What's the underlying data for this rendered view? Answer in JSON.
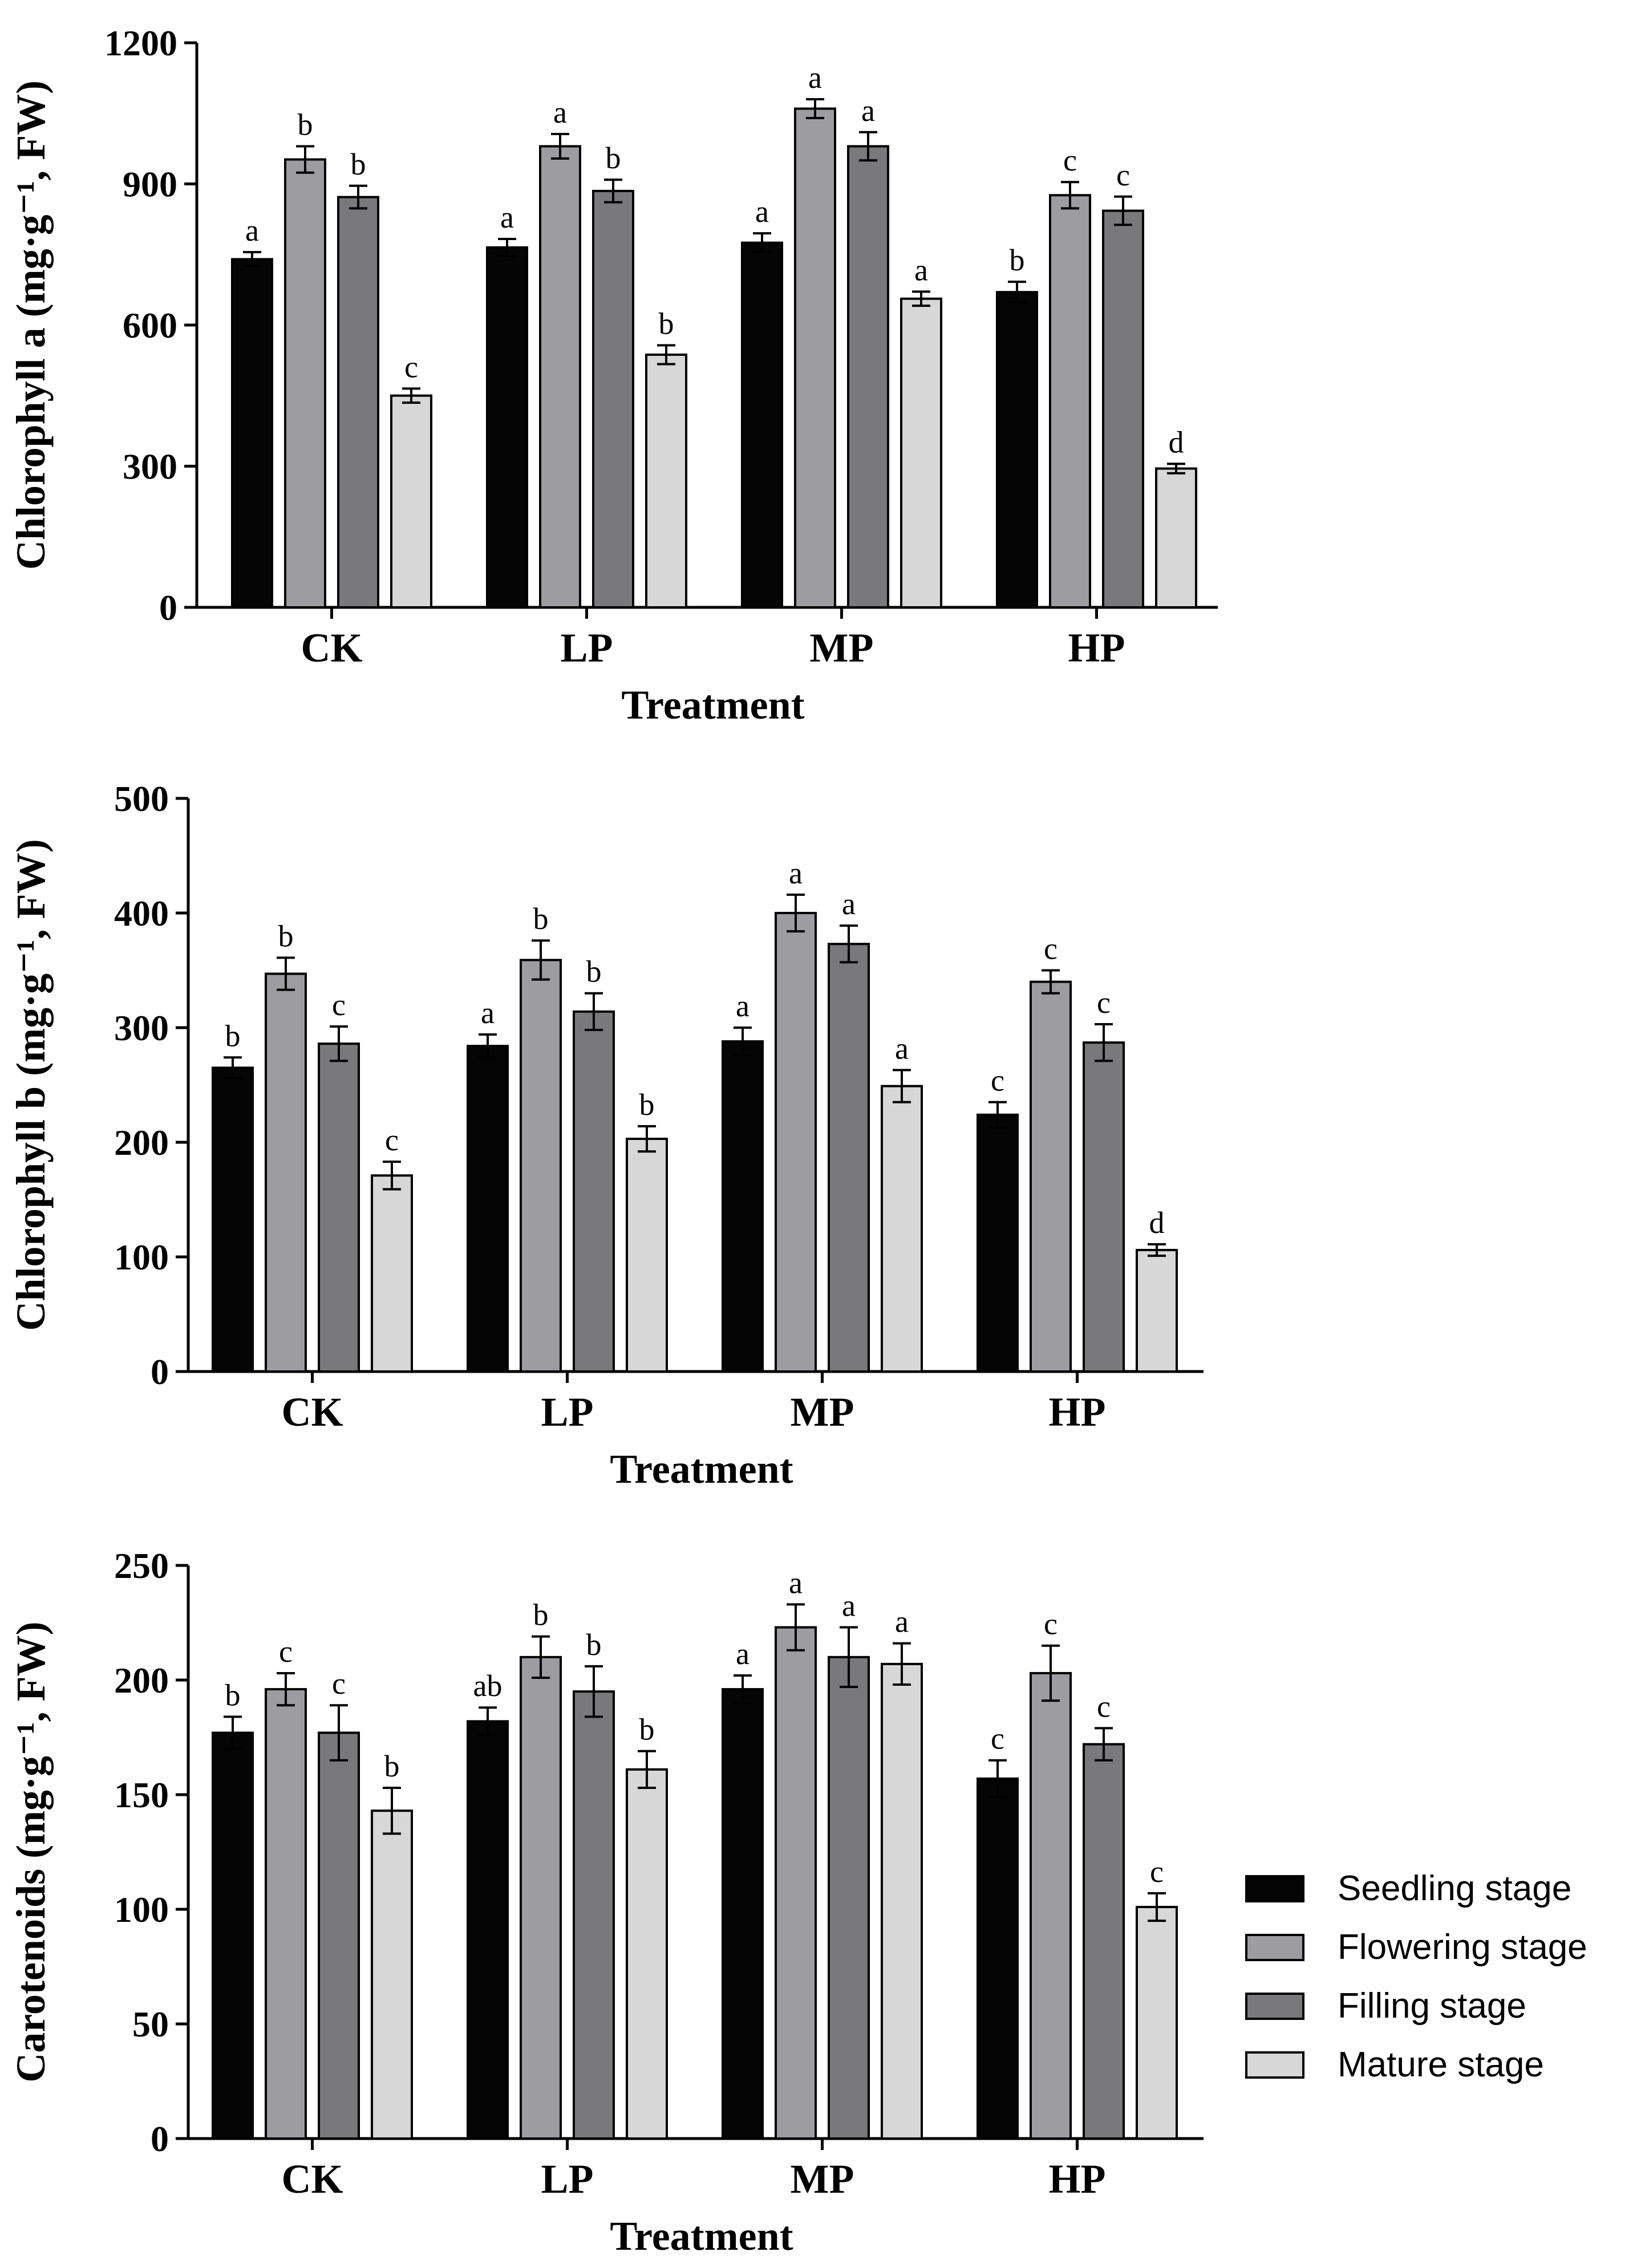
{
  "legend": [
    {
      "name": "Seedling stage",
      "color": "#050505"
    },
    {
      "name": "Flowering stage",
      "color": "#9d9ca1"
    },
    {
      "name": "Filling stage",
      "color": "#79797b"
    },
    {
      "name": "Mature stage",
      "color": "#d7d7d7"
    }
  ],
  "chart_data": [
    {
      "type": "bar",
      "title": "",
      "xlabel": "Treatment",
      "ylabel": "Chlorophyll a (mg·g⁻¹, FW)",
      "ylim": [
        0,
        1200
      ],
      "yticks": [
        "0",
        "300",
        "600",
        "900",
        "1200"
      ],
      "categories": [
        "CK",
        "LP",
        "MP",
        "HP"
      ],
      "series": [
        {
          "name": "Seedling stage",
          "values": [
            740,
            765,
            775,
            670
          ],
          "errors": [
            15,
            18,
            20,
            22
          ],
          "labels": [
            "a",
            "a",
            "a",
            "b"
          ]
        },
        {
          "name": "Flowering stage",
          "values": [
            952,
            980,
            1060,
            876
          ],
          "errors": [
            28,
            26,
            20,
            28
          ],
          "labels": [
            "b",
            "a",
            "a",
            "c"
          ]
        },
        {
          "name": "Filling stage",
          "values": [
            872,
            885,
            980,
            843
          ],
          "errors": [
            24,
            24,
            30,
            30
          ],
          "labels": [
            "b",
            "b",
            "a",
            "c"
          ]
        },
        {
          "name": "Mature stage",
          "values": [
            450,
            537,
            656,
            295
          ],
          "errors": [
            15,
            20,
            15,
            10
          ],
          "labels": [
            "c",
            "b",
            "a",
            "d"
          ]
        }
      ]
    },
    {
      "type": "bar",
      "title": "",
      "xlabel": "Treatment",
      "ylabel": "Chlorophyll b (mg·g⁻¹, FW)",
      "ylim": [
        0,
        500
      ],
      "yticks": [
        "0",
        "100",
        "200",
        "300",
        "400",
        "500"
      ],
      "categories": [
        "CK",
        "LP",
        "MP",
        "HP"
      ],
      "series": [
        {
          "name": "Seedling stage",
          "values": [
            265,
            284,
            288,
            224
          ],
          "errors": [
            9,
            10,
            12,
            11
          ],
          "labels": [
            "b",
            "a",
            "a",
            "c"
          ]
        },
        {
          "name": "Flowering stage",
          "values": [
            347,
            359,
            400,
            340
          ],
          "errors": [
            14,
            17,
            16,
            10
          ],
          "labels": [
            "b",
            "b",
            "a",
            "c"
          ]
        },
        {
          "name": "Filling stage",
          "values": [
            286,
            314,
            373,
            287
          ],
          "errors": [
            15,
            16,
            16,
            16
          ],
          "labels": [
            "c",
            "b",
            "a",
            "c"
          ]
        },
        {
          "name": "Mature stage",
          "values": [
            171,
            203,
            249,
            106
          ],
          "errors": [
            12,
            11,
            14,
            5
          ],
          "labels": [
            "c",
            "b",
            "a",
            "d"
          ]
        }
      ]
    },
    {
      "type": "bar",
      "title": "",
      "xlabel": "Treatment",
      "ylabel": "Carotenoids (mg·g⁻¹, FW)",
      "ylim": [
        0,
        250
      ],
      "yticks": [
        "0",
        "50",
        "100",
        "150",
        "200",
        "250"
      ],
      "categories": [
        "CK",
        "LP",
        "MP",
        "HP"
      ],
      "series": [
        {
          "name": "Seedling stage",
          "values": [
            177,
            182,
            196,
            157
          ],
          "errors": [
            7,
            6,
            6,
            8
          ],
          "labels": [
            "b",
            "ab",
            "a",
            "c"
          ]
        },
        {
          "name": "Flowering stage",
          "values": [
            196,
            210,
            223,
            203
          ],
          "errors": [
            7,
            9,
            10,
            12
          ],
          "labels": [
            "c",
            "b",
            "a",
            "c"
          ]
        },
        {
          "name": "Filling stage",
          "values": [
            177,
            195,
            210,
            172
          ],
          "errors": [
            12,
            11,
            13,
            7
          ],
          "labels": [
            "c",
            "b",
            "a",
            "c"
          ]
        },
        {
          "name": "Mature stage",
          "values": [
            143,
            161,
            207,
            101
          ],
          "errors": [
            10,
            8,
            9,
            6
          ],
          "labels": [
            "b",
            "b",
            "a",
            "c"
          ]
        }
      ]
    }
  ]
}
